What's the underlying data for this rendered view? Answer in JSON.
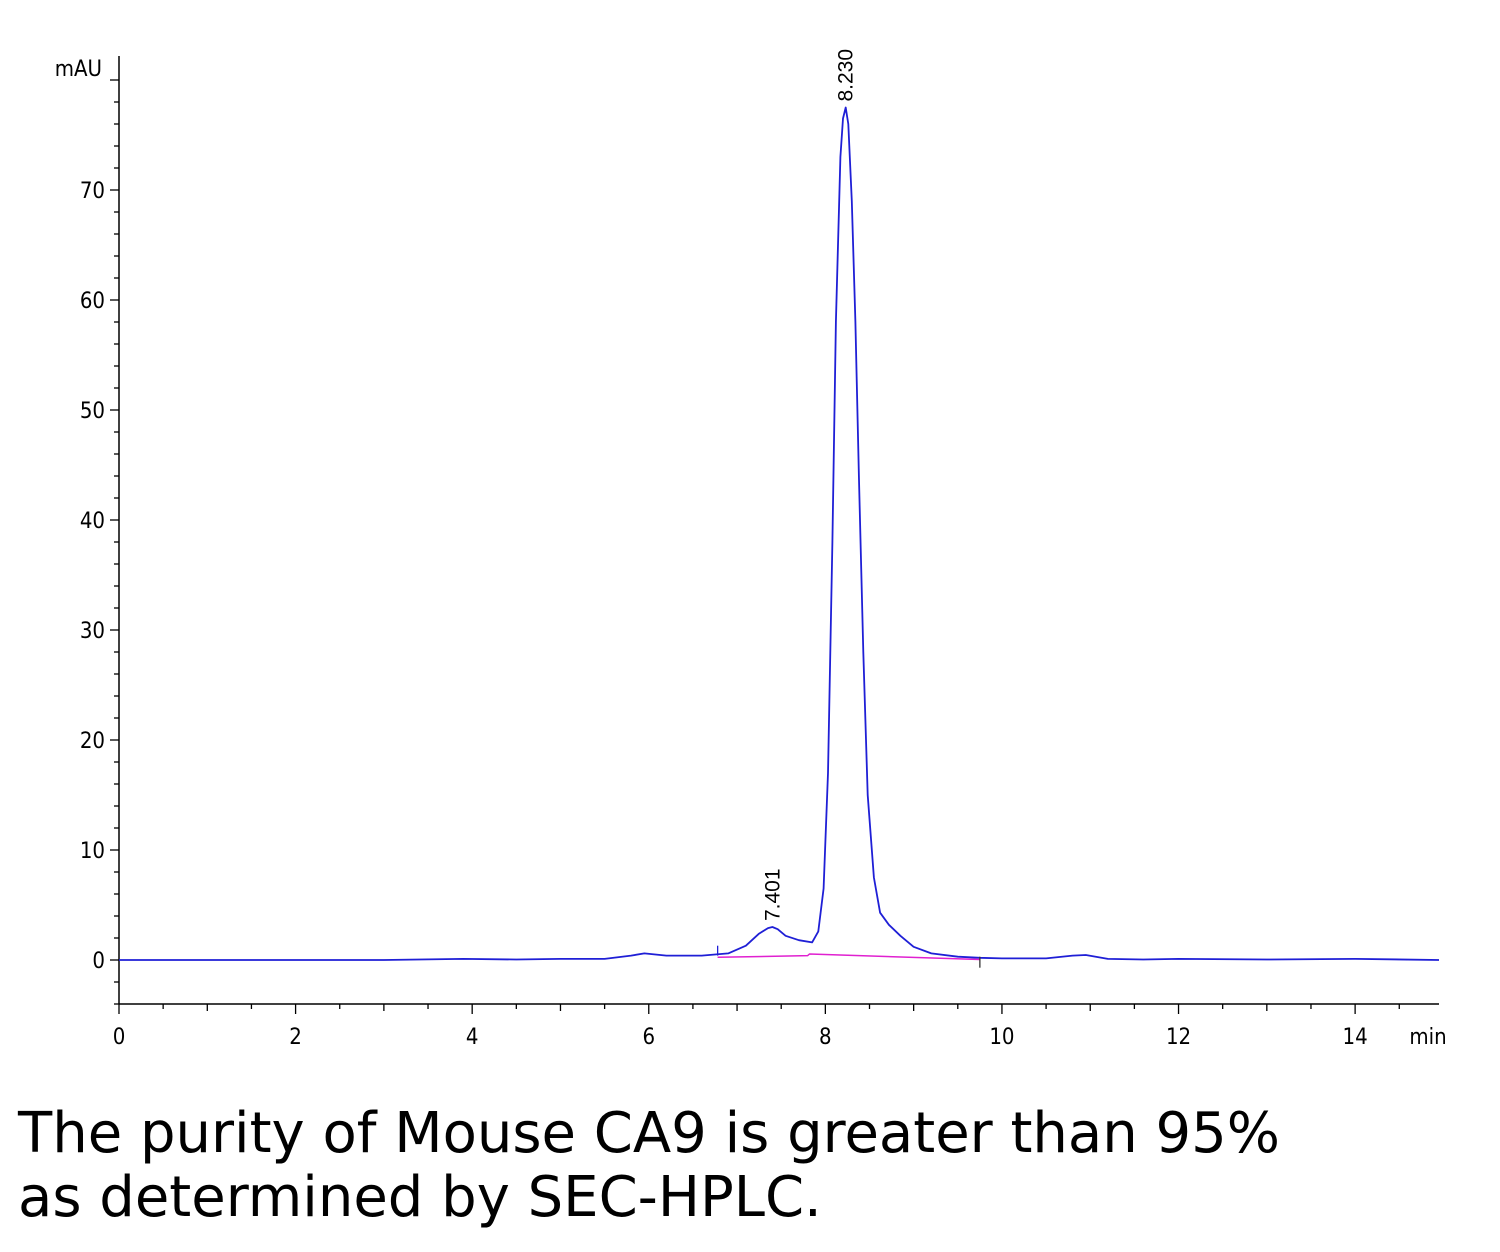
{
  "chart_data": {
    "type": "line",
    "title": "",
    "xlabel": "min",
    "ylabel": "mAU",
    "xlim": [
      0,
      14.95
    ],
    "ylim": [
      -4,
      82
    ],
    "x_ticks": [
      "0",
      "2",
      "4",
      "6",
      "8",
      "10",
      "12",
      "14"
    ],
    "y_ticks": [
      "0",
      "10",
      "20",
      "30",
      "40",
      "50",
      "60",
      "70"
    ],
    "grid": false,
    "series": [
      {
        "color": "#1f1fd6",
        "x": [
          0,
          1,
          2,
          3,
          3.9,
          4.5,
          5.0,
          5.5,
          5.8,
          5.95,
          6.2,
          6.6,
          6.9,
          7.1,
          7.25,
          7.35,
          7.4,
          7.46,
          7.55,
          7.7,
          7.85,
          7.92,
          7.98,
          8.03,
          8.08,
          8.12,
          8.17,
          8.2,
          8.23,
          8.26,
          8.3,
          8.34,
          8.38,
          8.43,
          8.48,
          8.55,
          8.62,
          8.72,
          8.85,
          9.0,
          9.2,
          9.5,
          9.75,
          10.0,
          10.5,
          10.8,
          10.95,
          11.2,
          11.6,
          12.0,
          13.0,
          14.0,
          14.95
        ],
        "y": [
          0,
          0,
          0,
          0,
          0.1,
          0.05,
          0.1,
          0.1,
          0.4,
          0.6,
          0.4,
          0.4,
          0.6,
          1.3,
          2.4,
          2.9,
          3.0,
          2.8,
          2.2,
          1.8,
          1.6,
          2.6,
          6.5,
          17,
          38,
          58,
          73,
          76.5,
          77.5,
          76,
          69,
          58,
          44,
          28,
          15,
          7.5,
          4.3,
          3.2,
          2.2,
          1.2,
          0.6,
          0.3,
          0.2,
          0.15,
          0.15,
          0.4,
          0.45,
          0.1,
          0.05,
          0.1,
          0.05,
          0.1,
          0
        ]
      },
      {
        "color": "#e020d0",
        "x": [
          6.78,
          7.8,
          7.82,
          9.75
        ],
        "y": [
          0.25,
          0.4,
          0.55,
          0.05
        ]
      }
    ],
    "annotations": [
      {
        "text": "8.230",
        "x": 8.23,
        "y": 77.5
      },
      {
        "text": "7.401",
        "x": 7.401,
        "y": 3.0
      }
    ]
  },
  "caption": {
    "line1": "The purity of Mouse CA9 is greater than 95%",
    "line2": "as determined by SEC-HPLC."
  }
}
